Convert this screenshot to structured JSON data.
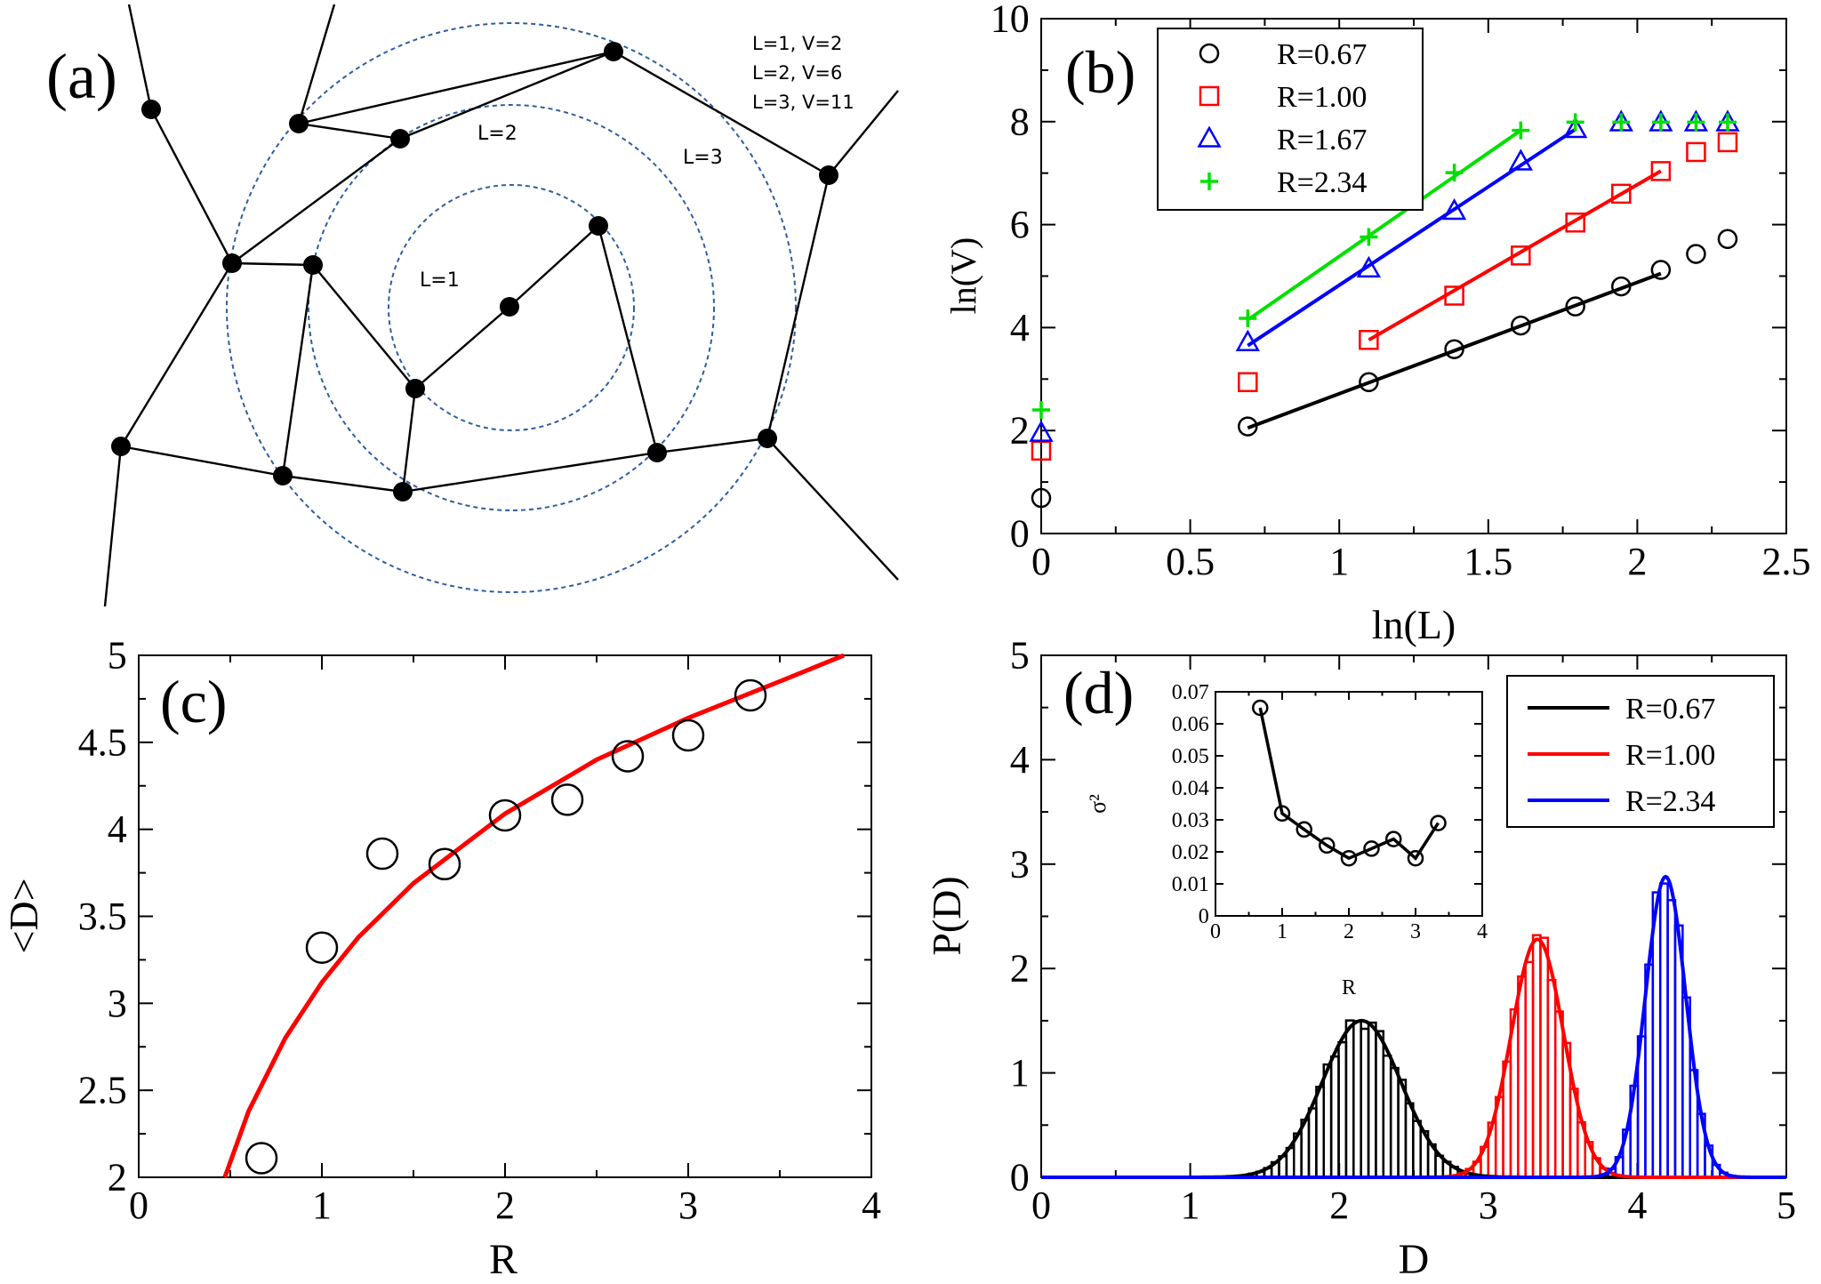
{
  "colors": {
    "black": "#000000",
    "red": "#ff0000",
    "blue": "#0000ff",
    "green": "#00e000",
    "circle_dash": "#2e5fa0"
  },
  "panel_a": {
    "label": "(a)",
    "rings": [
      "L=1",
      "L=2",
      "L=3"
    ],
    "counts": [
      "L=1, V=2",
      "L=2, V=6",
      "L=3, V=11"
    ]
  },
  "chart_data": [
    {
      "panel": "(b)",
      "type": "scatter",
      "xlabel": "ln(L)",
      "ylabel": "ln(V)",
      "xlim": [
        0,
        2.5
      ],
      "ylim": [
        0,
        10
      ],
      "xticks": [
        "0",
        "0.5",
        "1",
        "1.5",
        "2",
        "2.5"
      ],
      "yticks": [
        "0",
        "2",
        "4",
        "6",
        "8",
        "10"
      ],
      "grid": false,
      "legend_position": "top-left",
      "series": [
        {
          "name": "R=0.67",
          "marker": "circle",
          "color": "#000000",
          "x": [
            0,
            0.693,
            1.099,
            1.386,
            1.609,
            1.792,
            1.946,
            2.079,
            2.197,
            2.303
          ],
          "y": [
            0.69,
            2.08,
            2.94,
            3.58,
            4.04,
            4.41,
            4.8,
            5.12,
            5.43,
            5.72
          ],
          "fit": {
            "x": [
              0.693,
              2.079
            ],
            "y": [
              2.05,
              5.05
            ]
          }
        },
        {
          "name": "R=1.00",
          "marker": "square",
          "color": "#ff0000",
          "x": [
            0,
            0.693,
            1.099,
            1.386,
            1.609,
            1.792,
            1.946,
            2.079,
            2.197,
            2.303
          ],
          "y": [
            1.61,
            2.94,
            3.76,
            4.62,
            5.4,
            6.04,
            6.6,
            7.04,
            7.41,
            7.6
          ],
          "fit": {
            "x": [
              1.099,
              2.079
            ],
            "y": [
              3.76,
              7.04
            ]
          }
        },
        {
          "name": "R=1.67",
          "marker": "triangle",
          "color": "#0000ff",
          "x": [
            0,
            0.693,
            1.099,
            1.386,
            1.609,
            1.792,
            1.946,
            2.079,
            2.197,
            2.303
          ],
          "y": [
            1.95,
            3.71,
            5.14,
            6.26,
            7.22,
            7.85,
            7.98,
            7.98,
            7.98,
            7.98
          ],
          "fit": {
            "x": [
              0.693,
              1.792
            ],
            "y": [
              3.65,
              7.85
            ]
          }
        },
        {
          "name": "R=2.34",
          "marker": "plus",
          "color": "#00e000",
          "x": [
            0,
            0.693,
            1.099,
            1.386,
            1.609,
            1.792,
            1.946,
            2.079,
            2.197,
            2.303
          ],
          "y": [
            2.4,
            4.18,
            5.76,
            7.01,
            7.83,
            7.99,
            7.99,
            7.99,
            7.99,
            7.99
          ],
          "fit": {
            "x": [
              0.693,
              1.609
            ],
            "y": [
              4.15,
              7.83
            ]
          }
        }
      ]
    },
    {
      "panel": "(c)",
      "type": "scatter",
      "xlabel": "R",
      "ylabel": "<D>",
      "xlim": [
        0,
        4
      ],
      "ylim": [
        2,
        5
      ],
      "xticks": [
        "0",
        "1",
        "2",
        "3",
        "4"
      ],
      "yticks": [
        "2",
        "2.5",
        "3",
        "3.5",
        "4",
        "4.5",
        "5"
      ],
      "grid": false,
      "series": [
        {
          "marker": "circle",
          "color": "#000000",
          "x": [
            0.67,
            1.0,
            1.33,
            1.67,
            2.0,
            2.34,
            2.67,
            3.0,
            3.34
          ],
          "y": [
            2.11,
            3.32,
            3.86,
            3.8,
            4.08,
            4.17,
            4.42,
            4.54,
            4.77
          ]
        }
      ],
      "curve": {
        "color": "#ff0000",
        "x": [
          0.47,
          0.6,
          0.8,
          1.0,
          1.2,
          1.5,
          2.0,
          2.5,
          3.0,
          3.5,
          3.85
        ],
        "y": [
          2.0,
          2.38,
          2.8,
          3.12,
          3.38,
          3.69,
          4.09,
          4.4,
          4.64,
          4.85,
          5.0
        ]
      }
    },
    {
      "panel": "(d)",
      "type": "bar",
      "xlabel": "D",
      "ylabel": "P(D)",
      "xlim": [
        0,
        5
      ],
      "ylim": [
        0,
        5
      ],
      "xticks": [
        "0",
        "1",
        "2",
        "3",
        "4",
        "5"
      ],
      "yticks": [
        "0",
        "1",
        "2",
        "3",
        "4",
        "5"
      ],
      "grid": false,
      "legend_position": "top-right",
      "series": [
        {
          "name": "R=0.67",
          "color": "#000000",
          "mean": 2.15,
          "sd": 0.265,
          "peak": 1.5
        },
        {
          "name": "R=1.00",
          "color": "#ff0000",
          "mean": 3.33,
          "sd": 0.175,
          "peak": 2.28
        },
        {
          "name": "R=2.34",
          "color": "#0000ff",
          "mean": 4.19,
          "sd": 0.135,
          "peak": 2.88
        }
      ],
      "inset": {
        "type": "line",
        "xlabel": "R",
        "ylabel": "σ²",
        "xlim": [
          0,
          4
        ],
        "ylim": [
          0,
          0.07
        ],
        "xticks": [
          "0",
          "1",
          "2",
          "3",
          "4"
        ],
        "yticks": [
          "0",
          "0.01",
          "0.02",
          "0.03",
          "0.04",
          "0.05",
          "0.06",
          "0.07"
        ],
        "x": [
          0.67,
          1.0,
          1.33,
          1.67,
          2.0,
          2.34,
          2.67,
          3.0,
          3.34
        ],
        "y": [
          0.065,
          0.032,
          0.027,
          0.022,
          0.018,
          0.021,
          0.024,
          0.018,
          0.029
        ]
      }
    }
  ]
}
